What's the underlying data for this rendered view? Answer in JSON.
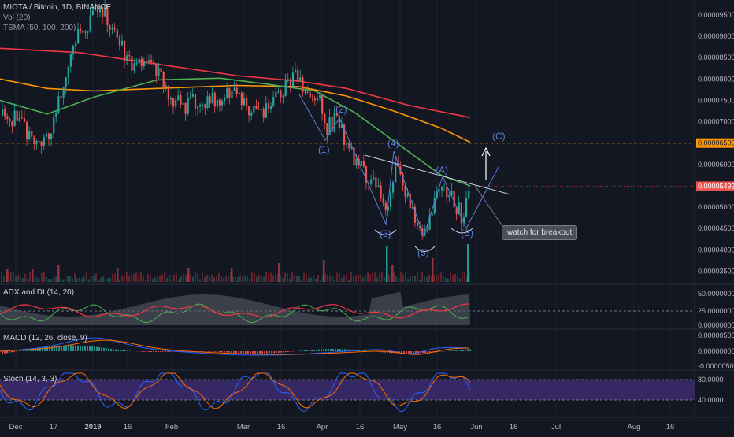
{
  "header": {
    "title": "MIOTA / Bitcoin, 1D, BINANCE",
    "vol": "Vol (20)",
    "tsma": "TSMA (50, 100, 200)"
  },
  "panes": {
    "adx": "ADX and DI (14, 20)",
    "macd": "MACD (12, 26, close, 9)",
    "stoch": "Stoch (14, 3, 3)"
  },
  "annotation": "watch for breakout",
  "chart_data": {
    "type": "candlestick",
    "x_ticks": [
      "Dec",
      "17",
      "2019",
      "16",
      "Feb",
      "Mar",
      "16",
      "Apr",
      "16",
      "May",
      "16",
      "Jun",
      "16",
      "Jul",
      "Aug",
      "16"
    ],
    "price_ticks": [
      "0.00009500",
      "0.00009000",
      "0.00008500",
      "0.00008000",
      "0.00007500",
      "0.00007000",
      "0.00006000",
      "0.00005000",
      "0.00004500",
      "0.00004000",
      "0.00003500"
    ],
    "price_ylim": [
      3.25e-05,
      9.85e-05
    ],
    "level_line": {
      "label": "0.00006500",
      "value": 6.5e-05
    },
    "last_price": {
      "label": "0.00005492",
      "value": 5.492e-05
    },
    "price_path": [
      [
        0,
        7.15e-05
      ],
      [
        18,
        7.05e-05
      ],
      [
        40,
        6.6e-05
      ],
      [
        60,
        6.7e-05
      ],
      [
        75,
        7.6e-05
      ],
      [
        90,
        8.85e-05
      ],
      [
        105,
        9.15e-05
      ],
      [
        118,
        9.45e-05
      ],
      [
        125,
        9.8e-05
      ],
      [
        140,
        9.3e-05
      ],
      [
        155,
        8.7e-05
      ],
      [
        170,
        8.3e-05
      ],
      [
        185,
        8.4e-05
      ],
      [
        200,
        8.2e-05
      ],
      [
        215,
        7.65e-05
      ],
      [
        230,
        7.35e-05
      ],
      [
        250,
        7.55e-05
      ],
      [
        270,
        7.45e-05
      ],
      [
        290,
        7.7e-05
      ],
      [
        310,
        7.45e-05
      ],
      [
        330,
        7.05e-05
      ],
      [
        350,
        7.55e-05
      ],
      [
        372,
        8.05e-05
      ],
      [
        390,
        7.55e-05
      ],
      [
        405,
        7.6e-05
      ],
      [
        415,
        6.85e-05
      ],
      [
        425,
        7.05e-05
      ],
      [
        440,
        6.45e-05
      ],
      [
        455,
        5.95e-05
      ],
      [
        470,
        5.6e-05
      ],
      [
        490,
        4.95e-05
      ],
      [
        500,
        5.85e-05
      ],
      [
        510,
        5.65e-05
      ],
      [
        525,
        4.7e-05
      ],
      [
        540,
        4.2e-05
      ],
      [
        550,
        5.05e-05
      ],
      [
        560,
        5.65e-05
      ],
      [
        575,
        5.1e-05
      ],
      [
        588,
        4.75e-05
      ],
      [
        597,
        5.49e-05
      ]
    ],
    "ma_series": [
      {
        "color": "#ff9800",
        "points": [
          [
            0,
            8e-05
          ],
          [
            60,
            7.78e-05
          ],
          [
            120,
            7.72e-05
          ],
          [
            200,
            7.78e-05
          ],
          [
            300,
            7.85e-05
          ],
          [
            380,
            7.82e-05
          ],
          [
            440,
            7.6e-05
          ],
          [
            500,
            7.25e-05
          ],
          [
            560,
            6.85e-05
          ],
          [
            597,
            6.52e-05
          ]
        ]
      },
      {
        "color": "#f23645",
        "points": [
          [
            0,
            8.72e-05
          ],
          [
            100,
            8.62e-05
          ],
          [
            200,
            8.35e-05
          ],
          [
            300,
            8.08e-05
          ],
          [
            380,
            7.95e-05
          ],
          [
            440,
            7.78e-05
          ],
          [
            520,
            7.38e-05
          ],
          [
            597,
            7.1e-05
          ]
        ]
      },
      {
        "color": "#4caf50",
        "points": [
          [
            0,
            7.5e-05
          ],
          [
            60,
            7.18e-05
          ],
          [
            120,
            7.58e-05
          ],
          [
            200,
            7.98e-05
          ],
          [
            280,
            8.02e-05
          ],
          [
            340,
            7.88e-05
          ],
          [
            400,
            7.72e-05
          ],
          [
            450,
            7.22e-05
          ],
          [
            500,
            6.55e-05
          ],
          [
            560,
            5.75e-05
          ],
          [
            597,
            5.5e-05
          ]
        ]
      }
    ],
    "volume_spikes": [
      [
        8,
        0.3
      ],
      [
        40,
        0.3
      ],
      [
        73,
        0.6
      ],
      [
        148,
        0.4
      ],
      [
        238,
        0.4
      ],
      [
        293,
        0.4
      ],
      [
        353,
        0.7
      ],
      [
        410,
        0.9
      ],
      [
        490,
        1.8
      ],
      [
        497,
        0.6
      ],
      [
        548,
        1.0
      ],
      [
        593,
        1.9
      ]
    ],
    "adx_ticks": [
      "50.00000000",
      "25.00000000",
      "0.00000000"
    ],
    "macd_ticks": [
      "0.00000500",
      "0.00000000",
      "-0.00000500"
    ],
    "stoch_ticks": [
      "80.0000",
      "40.0000"
    ]
  }
}
